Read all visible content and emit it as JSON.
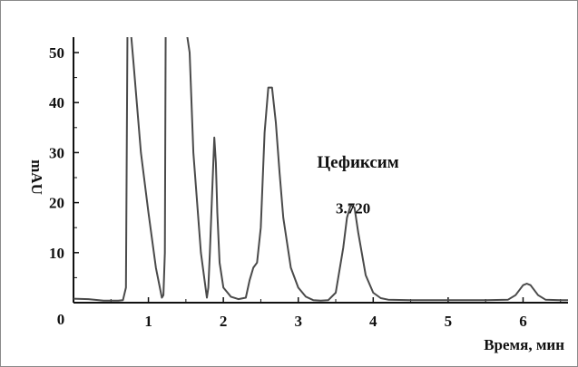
{
  "chart_data": {
    "type": "line",
    "title": "",
    "xlabel": "Время, мин",
    "ylabel": "mAU",
    "xlim": [
      0,
      6.6
    ],
    "ylim": [
      0,
      50
    ],
    "x_ticks": [
      1,
      2,
      3,
      4,
      5,
      6
    ],
    "y_ticks": [
      10,
      20,
      30,
      40,
      50
    ],
    "origin_label": "0",
    "grid": false,
    "line_color": "#4a4a4a",
    "series": [
      {
        "x": [
          0.0,
          0.2,
          0.4,
          0.6,
          0.66,
          0.7,
          0.72,
          0.76,
          0.8,
          0.9,
          1.0,
          1.1,
          1.18,
          1.2,
          1.22,
          1.23,
          1.24,
          1.3,
          1.4,
          1.5,
          1.55,
          1.6,
          1.7,
          1.78,
          1.8,
          1.82,
          1.85,
          1.88,
          1.9,
          1.92,
          1.95,
          2.0,
          2.1,
          2.2,
          2.3,
          2.35,
          2.4,
          2.45,
          2.5,
          2.55,
          2.6,
          2.65,
          2.7,
          2.75,
          2.8,
          2.9,
          3.0,
          3.1,
          3.2,
          3.3,
          3.4,
          3.5,
          3.6,
          3.65,
          3.7,
          3.75,
          3.8,
          3.9,
          4.0,
          4.1,
          4.2,
          4.5,
          5.0,
          5.5,
          5.8,
          5.9,
          6.0,
          6.05,
          6.1,
          6.2,
          6.3,
          6.5,
          6.6
        ],
        "y": [
          0.8,
          0.7,
          0.4,
          0.4,
          0.5,
          3.0,
          55.0,
          55.0,
          48.0,
          30.0,
          18.0,
          7.0,
          1.0,
          1.5,
          10.0,
          55.0,
          55.0,
          55.0,
          55.0,
          55.0,
          50.0,
          30.0,
          10.0,
          1.0,
          3.0,
          10.0,
          22.0,
          33.0,
          28.0,
          18.0,
          8.0,
          3.0,
          1.2,
          0.7,
          1.0,
          4.5,
          7.0,
          8.0,
          15.0,
          34.0,
          43.0,
          43.0,
          36.0,
          26.0,
          17.0,
          7.0,
          3.0,
          1.2,
          0.5,
          0.4,
          0.5,
          2.0,
          11.0,
          17.0,
          19.5,
          19.0,
          14.0,
          5.5,
          2.0,
          0.9,
          0.6,
          0.5,
          0.5,
          0.5,
          0.6,
          1.5,
          3.5,
          3.8,
          3.5,
          1.5,
          0.6,
          0.5,
          0.5
        ]
      }
    ],
    "annotations": [
      {
        "text": "Цефиксим",
        "x": 3.25,
        "y": 27.0,
        "size": 19
      },
      {
        "text": "3.720",
        "x": 3.5,
        "y": 17.8,
        "size": 17
      }
    ]
  }
}
